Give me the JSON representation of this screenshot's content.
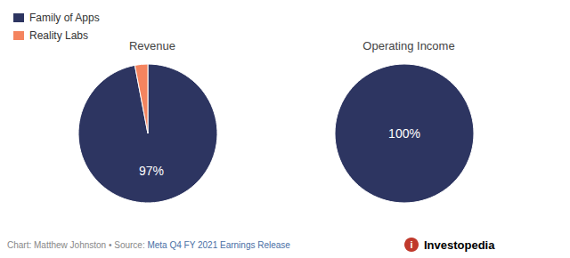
{
  "chart_data": [
    {
      "type": "pie",
      "title": "Revenue",
      "categories": [
        "Family of Apps",
        "Reality Labs"
      ],
      "values": [
        97,
        3
      ],
      "value_labels": [
        "97%",
        null
      ],
      "colors": [
        "#2d3561",
        "#f4845f"
      ],
      "data_labels": true,
      "legend": "upper left"
    },
    {
      "type": "pie",
      "title": "Operating Income",
      "categories": [
        "Family of Apps"
      ],
      "values": [
        100
      ],
      "value_labels": [
        "100%"
      ],
      "colors": [
        "#2d3561"
      ],
      "data_labels": true
    }
  ],
  "annotations": [
    {
      "text": "Chart: Matthew Johnston • Source: ",
      "color": "#888888"
    },
    {
      "text": "Meta Q4 FY 2021 Earnings Release",
      "color": "#4a6fa5"
    },
    {
      "text": "i",
      "color": "#ffffff",
      "background": "#c0392b"
    },
    {
      "text": "Investopedia",
      "color": "#000000"
    }
  ]
}
